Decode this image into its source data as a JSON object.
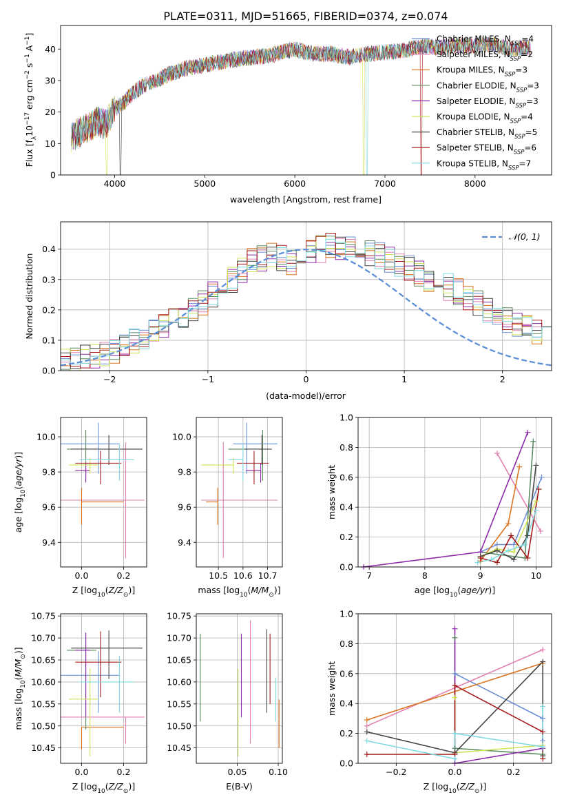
{
  "figure_title": "PLATE=0311, MJD=51665, FIBERID=0374, z=0.074",
  "colors": {
    "Chabrier MILES": "#6a8fd6",
    "Salpeter MILES": "#e17fb0",
    "Kroupa MILES": "#d9731f",
    "Chabrier ELODIE": "#5b8a5f",
    "Salpeter ELODIE": "#8c2aa8",
    "Kroupa ELODIE": "#cfe35a",
    "Chabrier STELIB": "#444444",
    "Salpeter STELIB": "#a51c1c",
    "Kroupa STELIB": "#7fd9e0"
  },
  "chart_data": [
    {
      "id": "spectrum",
      "type": "line",
      "title": "PLATE=0311, MJD=51665, FIBERID=0374, z=0.074",
      "xlabel": "wavelength [Angstrom, rest frame]",
      "ylabel": "Flux [f_λ 10^-17 erg cm^-2 s^-1 A^-1]",
      "xlim": [
        3400,
        8850
      ],
      "ylim": [
        0,
        47.5
      ],
      "xticks": [
        4000,
        5000,
        6000,
        7000,
        8000
      ],
      "yticks": [
        0,
        10,
        20,
        30,
        40
      ],
      "grid": false,
      "legend_position": "right",
      "spectrum_envelope": {
        "x": [
          3520,
          3600,
          3700,
          3800,
          3900,
          4000,
          4100,
          4200,
          4300,
          4400,
          4500,
          4600,
          4700,
          4800,
          4900,
          5000,
          5200,
          5400,
          5600,
          5800,
          6000,
          6200,
          6400,
          6600,
          6800,
          7000,
          7200,
          7400,
          7600,
          7800,
          8000,
          8200,
          8400,
          8600
        ],
        "y": [
          12,
          13.5,
          15,
          17,
          16,
          21,
          23,
          26,
          28,
          29.5,
          30.5,
          32,
          33,
          34,
          34.5,
          35,
          36,
          37,
          37.5,
          38.5,
          40,
          38.5,
          38.5,
          37.5,
          38.5,
          39,
          39.5,
          41,
          40.5,
          41,
          41,
          41.5,
          40,
          40.5
        ]
      },
      "series": [
        {
          "name": "Chabrier MILES, N_SSP=4",
          "label": "Chabrier MILES",
          "n_ssp": "4"
        },
        {
          "name": "Salpeter MILES, N_SSP=2",
          "label": "Salpeter MILES",
          "n_ssp": "2"
        },
        {
          "name": "Kroupa MILES, N_SSP=3",
          "label": "Kroupa MILES",
          "n_ssp": "3"
        },
        {
          "name": "Chabrier ELODIE, N_SSP=3",
          "label": "Chabrier ELODIE",
          "n_ssp": "3"
        },
        {
          "name": "Salpeter ELODIE, N_SSP=3",
          "label": "Salpeter ELODIE",
          "n_ssp": "3"
        },
        {
          "name": "Kroupa ELODIE, N_SSP=4",
          "label": "Kroupa ELODIE",
          "n_ssp": "4"
        },
        {
          "name": "Chabrier STELIB, N_SSP=5",
          "label": "Chabrier STELIB",
          "n_ssp": "5"
        },
        {
          "name": "Salpeter STELIB, N_SSP=6",
          "label": "Salpeter STELIB",
          "n_ssp": "6"
        },
        {
          "name": "Kroupa STELIB, N_SSP=7",
          "label": "Kroupa STELIB",
          "n_ssp": "7"
        }
      ]
    },
    {
      "id": "residuals",
      "type": "line",
      "xlabel": "(data-model)/error",
      "ylabel": "Normed distribution",
      "xlim": [
        -2.5,
        2.5
      ],
      "ylim": [
        0,
        0.49
      ],
      "xticks": [
        -2,
        -1,
        0,
        1,
        2
      ],
      "yticks": [
        0.0,
        0.1,
        0.2,
        0.3,
        0.4
      ],
      "grid": true,
      "legend_position": "top-right",
      "gaussian_label": "𝒩(0, 1)",
      "bin_width": 0.1,
      "series_profile": [
        0.03,
        0.036,
        0.043,
        0.05,
        0.058,
        0.068,
        0.08,
        0.093,
        0.108,
        0.125,
        0.143,
        0.162,
        0.182,
        0.203,
        0.226,
        0.25,
        0.275,
        0.302,
        0.33,
        0.36,
        0.37,
        0.375,
        0.37,
        0.36,
        0.36,
        0.385,
        0.4,
        0.41,
        0.405,
        0.4,
        0.395,
        0.39,
        0.38,
        0.365,
        0.35,
        0.335,
        0.32,
        0.305,
        0.29,
        0.275,
        0.26,
        0.24,
        0.22,
        0.2,
        0.183,
        0.167,
        0.152,
        0.138,
        0.125,
        0.112
      ]
    },
    {
      "id": "age_vs_Z",
      "type": "scatter",
      "xlabel": "Z [log10(Z/Z☉)]",
      "ylabel": "age [log10(age/yr)]",
      "xlim": [
        -0.1,
        0.31
      ],
      "ylim": [
        9.26,
        10.11
      ],
      "xticks": [
        0.0,
        0.2
      ],
      "yticks": [
        9.4,
        9.6,
        9.8,
        10.0
      ],
      "grid": true,
      "points": [
        {
          "x": 0.08,
          "y": 9.96,
          "xerr": [
            0.18,
            0.1
          ],
          "yerr": [
            0.17,
            0.12
          ],
          "series": "Chabrier MILES"
        },
        {
          "x": 0.21,
          "y": 9.64,
          "xerr": [
            0.31,
            0.09
          ],
          "yerr": [
            0.33,
            0.33
          ],
          "series": "Salpeter MILES"
        },
        {
          "x": 0.0,
          "y": 9.63,
          "xerr": [
            0.0,
            0.2
          ],
          "yerr": [
            0.13,
            0.08
          ],
          "series": "Kroupa MILES"
        },
        {
          "x": 0.02,
          "y": 9.93,
          "xerr": [
            0.09,
            0.05
          ],
          "yerr": [
            0.18,
            0.11
          ],
          "series": "Chabrier ELODIE"
        },
        {
          "x": 0.02,
          "y": 9.81,
          "xerr": [
            0.05,
            0.02
          ],
          "yerr": [
            0.07,
            0.04
          ],
          "series": "Salpeter ELODIE"
        },
        {
          "x": 0.04,
          "y": 9.84,
          "xerr": [
            0.1,
            0.04
          ],
          "yerr": [
            0.05,
            0.04
          ],
          "series": "Kroupa ELODIE"
        },
        {
          "x": 0.13,
          "y": 9.93,
          "xerr": [
            0.18,
            0.16
          ],
          "yerr": [
            0.09,
            0.08
          ],
          "series": "Chabrier STELIB"
        },
        {
          "x": 0.09,
          "y": 9.85,
          "xerr": [
            0.12,
            0.1
          ],
          "yerr": [
            0.12,
            0.07
          ],
          "series": "Salpeter STELIB"
        },
        {
          "x": 0.18,
          "y": 9.87,
          "xerr": [
            0.19,
            0.07
          ],
          "yerr": [
            0.12,
            0.09
          ],
          "series": "Kroupa STELIB"
        }
      ]
    },
    {
      "id": "age_vs_mass",
      "type": "scatter",
      "xlabel": "mass [log10(M/M☉)]",
      "ylabel": "",
      "xlim": [
        10.41,
        10.76
      ],
      "ylim": [
        9.26,
        10.11
      ],
      "xticks": [
        10.5,
        10.6,
        10.7
      ],
      "yticks": [
        9.4,
        9.6,
        9.8,
        10.0
      ],
      "grid": true,
      "points": [
        {
          "x": 10.615,
          "y": 9.96,
          "xerr": [
            0.055,
            0.125
          ],
          "yerr": [
            0.17,
            0.12
          ],
          "series": "Chabrier MILES"
        },
        {
          "x": 10.52,
          "y": 9.64,
          "xerr": [
            0.09,
            0.22
          ],
          "yerr": [
            0.33,
            0.33
          ],
          "series": "Salpeter MILES"
        },
        {
          "x": 10.497,
          "y": 9.63,
          "xerr": [
            0.047,
            0.0
          ],
          "yerr": [
            0.13,
            0.08
          ],
          "series": "Kroupa MILES"
        },
        {
          "x": 10.68,
          "y": 9.93,
          "xerr": [
            0.14,
            0.0
          ],
          "yerr": [
            0.18,
            0.11
          ],
          "series": "Chabrier ELODIE"
        },
        {
          "x": 10.672,
          "y": 9.81,
          "xerr": [
            0.06,
            0.0
          ],
          "yerr": [
            0.07,
            0.04
          ],
          "series": "Salpeter ELODIE"
        },
        {
          "x": 10.561,
          "y": 9.84,
          "xerr": [
            0.13,
            0.0
          ],
          "yerr": [
            0.05,
            0.04
          ],
          "series": "Kroupa ELODIE"
        },
        {
          "x": 10.677,
          "y": 9.93,
          "xerr": [
            0.07,
            0.04
          ],
          "yerr": [
            0.09,
            0.08
          ],
          "series": "Chabrier STELIB"
        },
        {
          "x": 10.645,
          "y": 9.85,
          "xerr": [
            0.07,
            0.06
          ],
          "yerr": [
            0.12,
            0.07
          ],
          "series": "Salpeter STELIB"
        },
        {
          "x": 10.6,
          "y": 9.87,
          "xerr": [
            0.06,
            0.0
          ],
          "yerr": [
            0.12,
            0.09
          ],
          "series": "Kroupa STELIB"
        }
      ]
    },
    {
      "id": "mass_weight_vs_age",
      "type": "line",
      "xlabel": "age [log10(age/yr)]",
      "ylabel": "mass weight",
      "xlim": [
        6.8,
        10.28
      ],
      "ylim": [
        0,
        1
      ],
      "xticks": [
        7,
        8,
        9,
        10
      ],
      "yticks": [
        0.0,
        0.2,
        0.4,
        0.6,
        0.8,
        1.0
      ],
      "grid": true,
      "series": [
        {
          "series": "Chabrier MILES",
          "x": [
            9.0,
            9.3,
            9.6,
            10.1
          ],
          "y": [
            0.1,
            0.15,
            0.15,
            0.6
          ]
        },
        {
          "series": "Salpeter MILES",
          "x": [
            9.3,
            10.08
          ],
          "y": [
            0.76,
            0.24
          ]
        },
        {
          "series": "Kroupa MILES",
          "x": [
            9.0,
            9.5,
            9.7
          ],
          "y": [
            0.04,
            0.29,
            0.67
          ]
        },
        {
          "series": "Chabrier ELODIE",
          "x": [
            9.0,
            9.8,
            9.95
          ],
          "y": [
            0.1,
            0.06,
            0.84
          ]
        },
        {
          "series": "Salpeter ELODIE",
          "x": [
            6.9,
            9.0,
            9.85
          ],
          "y": [
            0.0,
            0.1,
            0.9
          ]
        },
        {
          "series": "Kroupa ELODIE",
          "x": [
            9.0,
            9.3,
            9.6,
            10.0
          ],
          "y": [
            0.07,
            0.12,
            0.1,
            0.44
          ]
        },
        {
          "series": "Chabrier STELIB",
          "x": [
            9.0,
            9.3,
            9.6,
            9.85,
            10.0
          ],
          "y": [
            0.07,
            0.11,
            0.05,
            0.21,
            0.68
          ]
        },
        {
          "series": "Salpeter STELIB",
          "x": [
            9.0,
            9.3,
            9.55,
            9.85,
            10.05
          ],
          "y": [
            0.06,
            0.03,
            0.21,
            0.06,
            0.52
          ]
        },
        {
          "series": "Kroupa STELIB",
          "x": [
            8.95,
            9.2,
            9.5,
            9.8,
            10.0
          ],
          "y": [
            0.03,
            0.05,
            0.11,
            0.15,
            0.38
          ]
        }
      ]
    },
    {
      "id": "mass_vs_Z",
      "type": "scatter",
      "xlabel": "Z [log10(Z/Z☉)]",
      "ylabel": "mass [log10(M/M☉)]",
      "xlim": [
        -0.1,
        0.31
      ],
      "ylim": [
        10.415,
        10.755
      ],
      "xticks": [
        0.0,
        0.2
      ],
      "yticks": [
        10.45,
        10.5,
        10.55,
        10.6,
        10.65,
        10.7,
        10.75
      ],
      "grid": true,
      "points": [
        {
          "x": 0.08,
          "y": 10.615,
          "xerr": [
            0.18,
            0.1
          ],
          "yerr": [
            0.085,
            0.055
          ],
          "series": "Chabrier MILES"
        },
        {
          "x": 0.21,
          "y": 10.52,
          "xerr": [
            0.31,
            0.09
          ],
          "yerr": [
            0.06,
            0.0
          ],
          "series": "Salpeter MILES"
        },
        {
          "x": 0.0,
          "y": 10.497,
          "xerr": [
            0.0,
            0.2
          ],
          "yerr": [
            0.05,
            0.0
          ],
          "series": "Kroupa MILES"
        },
        {
          "x": 0.02,
          "y": 10.672,
          "xerr": [
            0.09,
            0.05
          ],
          "yerr": [
            0.18,
            0.04
          ],
          "series": "Chabrier ELODIE"
        },
        {
          "x": 0.02,
          "y": 10.672,
          "xerr": [
            0.05,
            0.02
          ],
          "yerr": [
            0.15,
            0.04
          ],
          "series": "Salpeter ELODIE"
        },
        {
          "x": 0.04,
          "y": 10.561,
          "xerr": [
            0.1,
            0.04
          ],
          "yerr": [
            0.13,
            0.07
          ],
          "series": "Kroupa ELODIE"
        },
        {
          "x": 0.13,
          "y": 10.677,
          "xerr": [
            0.18,
            0.16
          ],
          "yerr": [
            0.07,
            0.04
          ],
          "series": "Chabrier STELIB"
        },
        {
          "x": 0.09,
          "y": 10.645,
          "xerr": [
            0.12,
            0.1
          ],
          "yerr": [
            0.08,
            0.07
          ],
          "series": "Salpeter STELIB"
        },
        {
          "x": 0.18,
          "y": 10.6,
          "xerr": [
            0.19,
            0.07
          ],
          "yerr": [
            0.07,
            0.06
          ],
          "series": "Kroupa STELIB"
        }
      ]
    },
    {
      "id": "mass_vs_EBV",
      "type": "scatter",
      "xlabel": "E(B-V)",
      "ylabel": "",
      "xlim": [
        0.0,
        0.105
      ],
      "ylim": [
        10.415,
        10.755
      ],
      "xticks": [
        0.05,
        0.1
      ],
      "yticks": [
        10.45,
        10.5,
        10.55,
        10.6,
        10.65,
        10.7,
        10.75
      ],
      "grid": true,
      "points": [
        {
          "x": 0.005,
          "y": 10.61,
          "yerr": [
            0.1,
            0.1
          ],
          "series": "Chabrier ELODIE"
        },
        {
          "x": 0.051,
          "y": 10.51,
          "yerr": [
            0.08,
            0.12
          ],
          "series": "Kroupa ELODIE"
        },
        {
          "x": 0.055,
          "y": 10.6,
          "yerr": [
            0.08,
            0.11
          ],
          "series": "Salpeter ELODIE"
        },
        {
          "x": 0.066,
          "y": 10.6,
          "yerr": [
            0.14,
            0.14
          ],
          "series": "Salpeter MILES"
        },
        {
          "x": 0.086,
          "y": 10.63,
          "yerr": [
            0.1,
            0.09
          ],
          "series": "Chabrier STELIB"
        },
        {
          "x": 0.09,
          "y": 10.63,
          "yerr": [
            0.08,
            0.08
          ],
          "series": "Salpeter STELIB"
        },
        {
          "x": 0.097,
          "y": 10.56,
          "yerr": [
            0.05,
            0.05
          ],
          "series": "Kroupa STELIB"
        },
        {
          "x": 0.101,
          "y": 10.51,
          "yerr": [
            0.06,
            0.05
          ],
          "series": "Kroupa MILES"
        }
      ]
    },
    {
      "id": "mass_weight_vs_Z",
      "type": "line",
      "xlabel": "Z [log10(Z/Z☉)]",
      "ylabel": "mass weight",
      "xlim": [
        -0.33,
        0.33
      ],
      "ylim": [
        0,
        1
      ],
      "xticks": [
        -0.2,
        0.0,
        0.2
      ],
      "yticks": [
        0.0,
        0.2,
        0.4,
        0.6,
        0.8,
        1.0
      ],
      "grid": true,
      "series": [
        {
          "series": "Chabrier MILES",
          "x": [
            0.0,
            0.0,
            0.3,
            0.3
          ],
          "y": [
            0.1,
            0.6,
            0.3,
            0.15
          ]
        },
        {
          "series": "Salpeter MILES",
          "x": [
            -0.3,
            0.3
          ],
          "y": [
            0.25,
            0.76
          ]
        },
        {
          "series": "Kroupa MILES",
          "x": [
            -0.3,
            0.3
          ],
          "y": [
            0.29,
            0.67
          ]
        },
        {
          "series": "Chabrier ELODIE",
          "x": [
            0.0,
            0.0,
            0.3
          ],
          "y": [
            0.84,
            0.1,
            0.06
          ]
        },
        {
          "series": "Salpeter ELODIE",
          "x": [
            0.0,
            0.0,
            0.3
          ],
          "y": [
            0.9,
            0.0,
            0.1
          ]
        },
        {
          "series": "Kroupa ELODIE",
          "x": [
            0.0,
            0.0,
            0.3
          ],
          "y": [
            0.44,
            0.07,
            0.12
          ]
        },
        {
          "series": "Chabrier STELIB",
          "x": [
            -0.3,
            0.0,
            0.3,
            0.3
          ],
          "y": [
            0.21,
            0.07,
            0.68,
            0.05
          ]
        },
        {
          "series": "Salpeter STELIB",
          "x": [
            -0.3,
            0.0,
            0.0,
            0.3,
            0.3
          ],
          "y": [
            0.06,
            0.06,
            0.52,
            0.21,
            0.03
          ]
        },
        {
          "series": "Kroupa STELIB",
          "x": [
            -0.3,
            0.0,
            0.0,
            0.3,
            0.3
          ],
          "y": [
            0.15,
            0.03,
            0.2,
            0.11,
            0.38
          ]
        }
      ]
    }
  ]
}
